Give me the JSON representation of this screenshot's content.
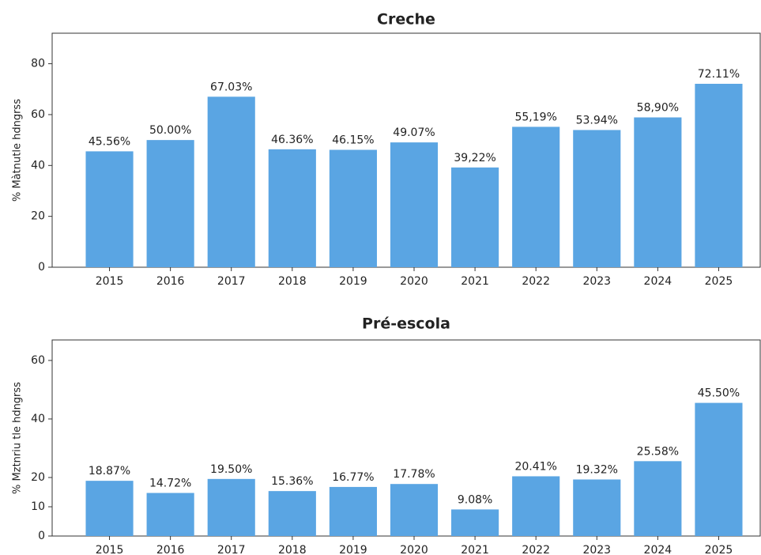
{
  "chart_data": [
    {
      "type": "bar",
      "title": "Creche",
      "ylabel": "% Màtnutle hdngrss",
      "categories": [
        "2015",
        "2016",
        "2017",
        "2018",
        "2019",
        "2020",
        "2021",
        "2022",
        "2023",
        "2024",
        "2025"
      ],
      "values": [
        45.56,
        50.0,
        67.03,
        46.36,
        46.15,
        49.07,
        39.22,
        55.19,
        53.94,
        58.9,
        72.11
      ],
      "value_labels": [
        "45.56%",
        "50.00%",
        "67.03%",
        "46.36%",
        "46.15%",
        "49.07%",
        "39,22%",
        "55,19%",
        "53.94%",
        "58,90%",
        "72.11%"
      ],
      "color": "#5aa5e3",
      "ylim": [
        0,
        92
      ],
      "yticks": [
        0,
        20,
        40,
        60,
        80
      ]
    },
    {
      "type": "bar",
      "title": "Pré-escola",
      "ylabel": "% Mztnriu tle hdngrss",
      "categories": [
        "2015",
        "2016",
        "2017",
        "2018",
        "2019",
        "2020",
        "2021",
        "2022",
        "2023",
        "2024",
        "2025"
      ],
      "values": [
        18.87,
        14.72,
        19.5,
        15.36,
        16.77,
        17.78,
        9.08,
        20.41,
        19.32,
        25.58,
        45.5
      ],
      "value_labels": [
        "18.87%",
        "14.72%",
        "19.50%",
        "15.36%",
        "16.77%",
        "17.78%",
        "9.08%",
        "20.41%",
        "19.32%",
        "25.58%",
        "45.50%"
      ],
      "color": "#5aa5e3",
      "ylim": [
        0,
        67
      ],
      "yticks": [
        0,
        10,
        20,
        40,
        60
      ]
    }
  ]
}
